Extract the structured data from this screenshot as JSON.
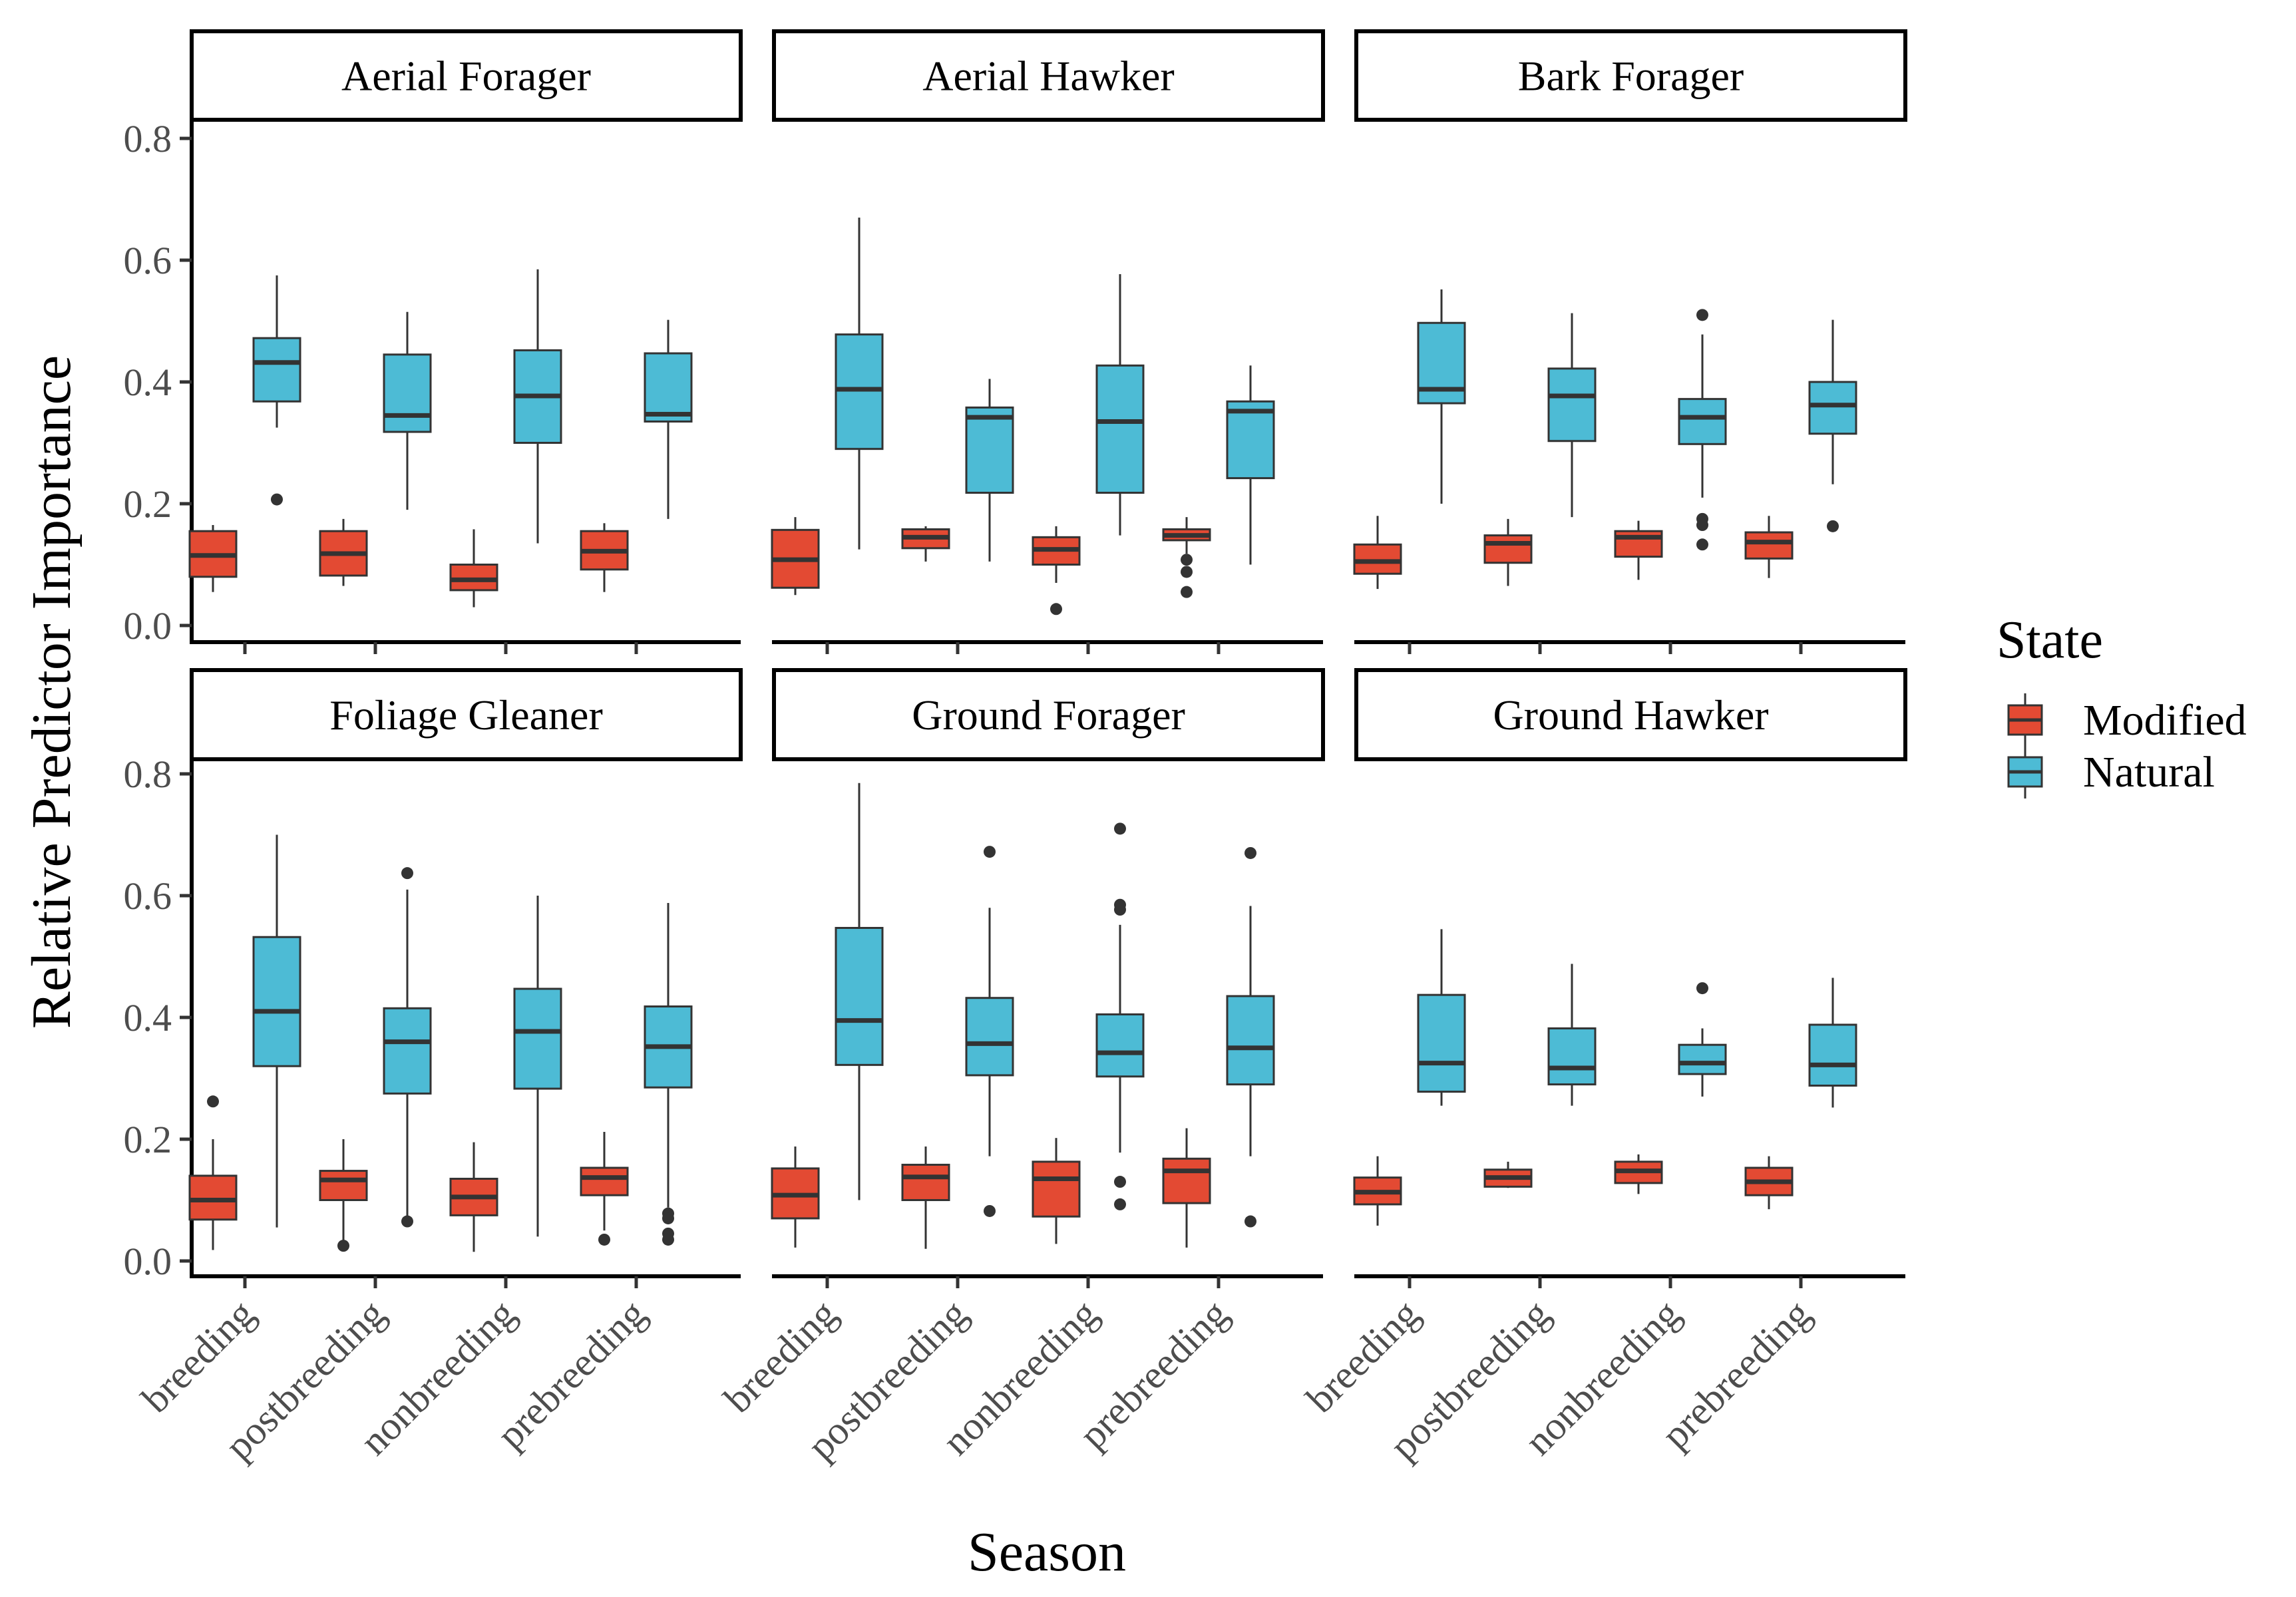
{
  "chart_data": {
    "type": "boxplot",
    "xlabel": "Season",
    "ylabel": "Relative Predictor Importance",
    "ylim": [
      0,
      0.8
    ],
    "yticks": [
      "0.0",
      "0.2",
      "0.4",
      "0.6",
      "0.8"
    ],
    "categories": [
      "breeding",
      "postbreeding",
      "nonbreeding",
      "prebreeding"
    ],
    "legend": {
      "title": "State",
      "position": "right",
      "entries": [
        {
          "label": "Modified",
          "color": "#E34A33"
        },
        {
          "label": "Natural",
          "color": "#4DBBD5"
        }
      ]
    },
    "grid": false,
    "facets": [
      {
        "title": "Aerial Forager",
        "boxes": {
          "Modified": [
            {
              "lower": 0.055,
              "q1": 0.08,
              "median": 0.115,
              "q3": 0.155,
              "upper": 0.165,
              "outliers": []
            },
            {
              "lower": 0.065,
              "q1": 0.082,
              "median": 0.118,
              "q3": 0.155,
              "upper": 0.175,
              "outliers": []
            },
            {
              "lower": 0.03,
              "q1": 0.058,
              "median": 0.075,
              "q3": 0.1,
              "upper": 0.158,
              "outliers": []
            },
            {
              "lower": 0.055,
              "q1": 0.092,
              "median": 0.122,
              "q3": 0.155,
              "upper": 0.168,
              "outliers": []
            }
          ],
          "Natural": [
            {
              "lower": 0.325,
              "q1": 0.368,
              "median": 0.432,
              "q3": 0.472,
              "upper": 0.575,
              "outliers": [
                0.207
              ]
            },
            {
              "lower": 0.19,
              "q1": 0.318,
              "median": 0.345,
              "q3": 0.445,
              "upper": 0.515,
              "outliers": []
            },
            {
              "lower": 0.135,
              "q1": 0.3,
              "median": 0.377,
              "q3": 0.452,
              "upper": 0.585,
              "outliers": []
            },
            {
              "lower": 0.175,
              "q1": 0.335,
              "median": 0.347,
              "q3": 0.447,
              "upper": 0.502,
              "outliers": []
            }
          ]
        }
      },
      {
        "title": "Aerial Hawker",
        "boxes": {
          "Modified": [
            {
              "lower": 0.05,
              "q1": 0.062,
              "median": 0.108,
              "q3": 0.157,
              "upper": 0.178,
              "outliers": []
            },
            {
              "lower": 0.105,
              "q1": 0.127,
              "median": 0.145,
              "q3": 0.158,
              "upper": 0.163,
              "outliers": []
            },
            {
              "lower": 0.07,
              "q1": 0.1,
              "median": 0.125,
              "q3": 0.145,
              "upper": 0.163,
              "outliers": [
                0.027
              ]
            },
            {
              "lower": 0.118,
              "q1": 0.14,
              "median": 0.148,
              "q3": 0.158,
              "upper": 0.178,
              "outliers": [
                0.108,
                0.088,
                0.055
              ]
            }
          ],
          "Natural": [
            {
              "lower": 0.125,
              "q1": 0.29,
              "median": 0.388,
              "q3": 0.478,
              "upper": 0.67,
              "outliers": []
            },
            {
              "lower": 0.105,
              "q1": 0.218,
              "median": 0.342,
              "q3": 0.358,
              "upper": 0.405,
              "outliers": []
            },
            {
              "lower": 0.148,
              "q1": 0.218,
              "median": 0.335,
              "q3": 0.427,
              "upper": 0.577,
              "outliers": []
            },
            {
              "lower": 0.1,
              "q1": 0.242,
              "median": 0.352,
              "q3": 0.368,
              "upper": 0.427,
              "outliers": []
            }
          ]
        }
      },
      {
        "title": "Bark Forager",
        "boxes": {
          "Modified": [
            {
              "lower": 0.06,
              "q1": 0.085,
              "median": 0.105,
              "q3": 0.133,
              "upper": 0.18,
              "outliers": []
            },
            {
              "lower": 0.065,
              "q1": 0.103,
              "median": 0.135,
              "q3": 0.148,
              "upper": 0.175,
              "outliers": []
            },
            {
              "lower": 0.075,
              "q1": 0.113,
              "median": 0.145,
              "q3": 0.155,
              "upper": 0.172,
              "outliers": []
            },
            {
              "lower": 0.078,
              "q1": 0.11,
              "median": 0.137,
              "q3": 0.153,
              "upper": 0.18,
              "outliers": []
            }
          ],
          "Natural": [
            {
              "lower": 0.2,
              "q1": 0.365,
              "median": 0.388,
              "q3": 0.497,
              "upper": 0.552,
              "outliers": []
            },
            {
              "lower": 0.178,
              "q1": 0.303,
              "median": 0.377,
              "q3": 0.422,
              "upper": 0.513,
              "outliers": []
            },
            {
              "lower": 0.21,
              "q1": 0.298,
              "median": 0.342,
              "q3": 0.372,
              "upper": 0.478,
              "outliers": [
                0.51,
                0.175,
                0.165,
                0.133
              ]
            },
            {
              "lower": 0.232,
              "q1": 0.315,
              "median": 0.362,
              "q3": 0.4,
              "upper": 0.502,
              "outliers": [
                0.163
              ]
            }
          ]
        }
      },
      {
        "title": "Foliage Gleaner",
        "boxes": {
          "Modified": [
            {
              "lower": 0.018,
              "q1": 0.068,
              "median": 0.1,
              "q3": 0.14,
              "upper": 0.2,
              "outliers": [
                0.262
              ]
            },
            {
              "lower": 0.03,
              "q1": 0.1,
              "median": 0.133,
              "q3": 0.148,
              "upper": 0.2,
              "outliers": [
                0.025
              ]
            },
            {
              "lower": 0.015,
              "q1": 0.075,
              "median": 0.105,
              "q3": 0.135,
              "upper": 0.195,
              "outliers": []
            },
            {
              "lower": 0.05,
              "q1": 0.108,
              "median": 0.137,
              "q3": 0.153,
              "upper": 0.212,
              "outliers": [
                0.035
              ]
            }
          ],
          "Natural": [
            {
              "lower": 0.055,
              "q1": 0.32,
              "median": 0.41,
              "q3": 0.532,
              "upper": 0.7,
              "outliers": []
            },
            {
              "lower": 0.065,
              "q1": 0.275,
              "median": 0.36,
              "q3": 0.415,
              "upper": 0.61,
              "outliers": [
                0.637,
                0.065
              ]
            },
            {
              "lower": 0.04,
              "q1": 0.283,
              "median": 0.377,
              "q3": 0.447,
              "upper": 0.6,
              "outliers": []
            },
            {
              "lower": 0.088,
              "q1": 0.285,
              "median": 0.352,
              "q3": 0.418,
              "upper": 0.588,
              "outliers": [
                0.078,
                0.07,
                0.045,
                0.035
              ]
            }
          ]
        }
      },
      {
        "title": "Ground Forager",
        "boxes": {
          "Modified": [
            {
              "lower": 0.022,
              "q1": 0.07,
              "median": 0.108,
              "q3": 0.152,
              "upper": 0.188,
              "outliers": []
            },
            {
              "lower": 0.02,
              "q1": 0.1,
              "median": 0.138,
              "q3": 0.158,
              "upper": 0.188,
              "outliers": []
            },
            {
              "lower": 0.028,
              "q1": 0.073,
              "median": 0.135,
              "q3": 0.163,
              "upper": 0.202,
              "outliers": []
            },
            {
              "lower": 0.022,
              "q1": 0.095,
              "median": 0.148,
              "q3": 0.168,
              "upper": 0.218,
              "outliers": []
            }
          ],
          "Natural": [
            {
              "lower": 0.1,
              "q1": 0.322,
              "median": 0.395,
              "q3": 0.547,
              "upper": 0.785,
              "outliers": []
            },
            {
              "lower": 0.172,
              "q1": 0.305,
              "median": 0.357,
              "q3": 0.432,
              "upper": 0.58,
              "outliers": [
                0.672,
                0.082
              ]
            },
            {
              "lower": 0.178,
              "q1": 0.303,
              "median": 0.342,
              "q3": 0.405,
              "upper": 0.552,
              "outliers": [
                0.71,
                0.585,
                0.577,
                0.13,
                0.093
              ]
            },
            {
              "lower": 0.172,
              "q1": 0.29,
              "median": 0.35,
              "q3": 0.435,
              "upper": 0.583,
              "outliers": [
                0.67,
                0.065
              ]
            }
          ]
        }
      },
      {
        "title": "Ground Hawker",
        "boxes": {
          "Modified": [
            {
              "lower": 0.058,
              "q1": 0.093,
              "median": 0.113,
              "q3": 0.137,
              "upper": 0.172,
              "outliers": []
            },
            {
              "lower": 0.12,
              "q1": 0.122,
              "median": 0.137,
              "q3": 0.15,
              "upper": 0.163,
              "outliers": []
            },
            {
              "lower": 0.11,
              "q1": 0.128,
              "median": 0.148,
              "q3": 0.163,
              "upper": 0.175,
              "outliers": []
            },
            {
              "lower": 0.085,
              "q1": 0.108,
              "median": 0.13,
              "q3": 0.153,
              "upper": 0.172,
              "outliers": []
            }
          ],
          "Natural": [
            {
              "lower": 0.255,
              "q1": 0.278,
              "median": 0.325,
              "q3": 0.437,
              "upper": 0.545,
              "outliers": []
            },
            {
              "lower": 0.255,
              "q1": 0.29,
              "median": 0.317,
              "q3": 0.382,
              "upper": 0.488,
              "outliers": []
            },
            {
              "lower": 0.27,
              "q1": 0.307,
              "median": 0.325,
              "q3": 0.355,
              "upper": 0.382,
              "outliers": [
                0.448
              ]
            },
            {
              "lower": 0.252,
              "q1": 0.288,
              "median": 0.322,
              "q3": 0.388,
              "upper": 0.465,
              "outliers": []
            }
          ]
        }
      }
    ]
  }
}
